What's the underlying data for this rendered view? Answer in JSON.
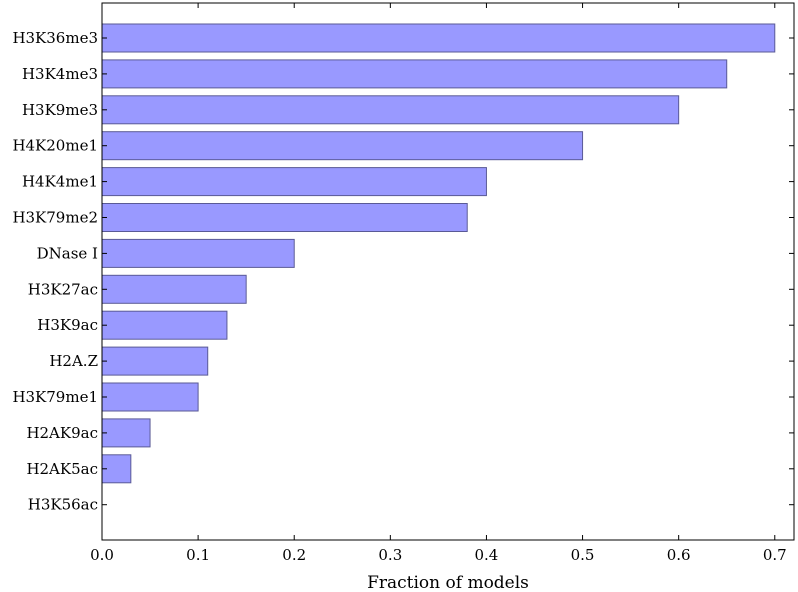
{
  "chart_data": {
    "type": "bar",
    "orientation": "horizontal",
    "title": "",
    "xlabel": "Fraction of models",
    "ylabel": "",
    "xlim": [
      0,
      0.72
    ],
    "x_ticks": [
      "0.0",
      "0.1",
      "0.2",
      "0.3",
      "0.4",
      "0.5",
      "0.6",
      "0.7"
    ],
    "grid": false,
    "legend": "none",
    "bar_color": "#9999ff",
    "bar_edge_color": "#5a5a96",
    "categories": [
      "H3K36me3",
      "H3K4me3",
      "H3K9me3",
      "H4K20me1",
      "H4K4me1",
      "H3K79me2",
      "DNase I",
      "H3K27ac",
      "H3K9ac",
      "H2A.Z",
      "H3K79me1",
      "H2AK9ac",
      "H2AK5ac",
      "H3K56ac"
    ],
    "values": [
      0.7,
      0.65,
      0.6,
      0.5,
      0.4,
      0.38,
      0.2,
      0.15,
      0.13,
      0.11,
      0.1,
      0.05,
      0.03,
      0.0
    ]
  }
}
